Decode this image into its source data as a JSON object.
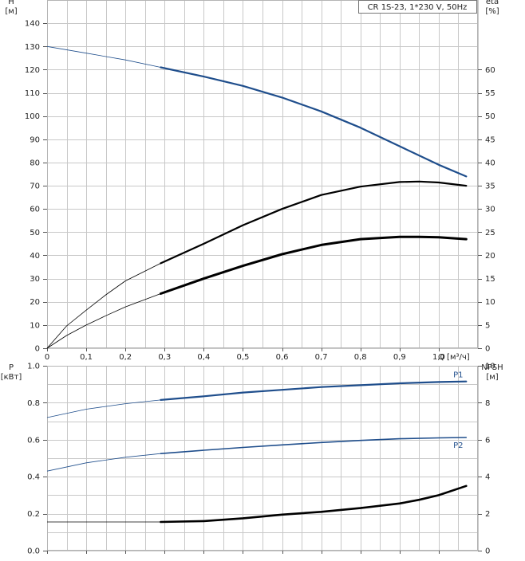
{
  "chart_data": [
    {
      "type": "line",
      "title_box": "CR 1S-23, 1*230 V, 50Hz",
      "xlabel": "Q [м³/ч]",
      "x_ticks": [
        "0",
        "0,1",
        "0,2",
        "0,3",
        "0,4",
        "0,5",
        "0,6",
        "0,7",
        "0,8",
        "0,9",
        "1,0"
      ],
      "xlim": [
        0,
        1.1
      ],
      "left_axis": {
        "label_lines": [
          "H",
          "[м]"
        ],
        "ylim": [
          0,
          150
        ],
        "ticks": [
          "0",
          "10",
          "20",
          "30",
          "40",
          "50",
          "60",
          "70",
          "80",
          "90",
          "100",
          "110",
          "120",
          "130",
          "140"
        ]
      },
      "right_axis": {
        "label_lines": [
          "eta",
          "[%]"
        ],
        "ylim": [
          0,
          75
        ],
        "ticks": [
          "0",
          "5",
          "10",
          "15",
          "20",
          "25",
          "30",
          "35",
          "40",
          "45",
          "50",
          "55",
          "60"
        ]
      },
      "grid": true,
      "series": [
        {
          "color": "#1f4e8c",
          "axis": "left",
          "bold_from": 0.29,
          "x": [
            0,
            0.1,
            0.2,
            0.29,
            0.4,
            0.5,
            0.6,
            0.7,
            0.8,
            0.9,
            1.0,
            1.07
          ],
          "values": [
            130,
            127.1,
            124.2,
            121,
            117,
            113,
            108,
            102,
            95,
            87,
            79,
            74
          ]
        },
        {
          "color": "#000000",
          "axis": "right",
          "bold_from": 0.29,
          "x": [
            0,
            0.05,
            0.1,
            0.15,
            0.2,
            0.29,
            0.4,
            0.5,
            0.6,
            0.7,
            0.8,
            0.9,
            0.95,
            1.0,
            1.07
          ],
          "values": [
            0,
            4.8,
            8.2,
            11.5,
            14.5,
            18.3,
            22.5,
            26.5,
            30,
            33,
            34.8,
            35.8,
            35.9,
            35.7,
            35
          ]
        },
        {
          "color": "#000000",
          "axis": "left",
          "bold_from": 0.29,
          "bold_width": 3,
          "x": [
            0,
            0.05,
            0.1,
            0.15,
            0.2,
            0.29,
            0.4,
            0.5,
            0.6,
            0.7,
            0.8,
            0.9,
            0.95,
            1.0,
            1.07
          ],
          "values": [
            0,
            5.5,
            10,
            14,
            17.8,
            23.5,
            30,
            35.5,
            40.5,
            44.5,
            47,
            48,
            48,
            47.8,
            47
          ]
        }
      ]
    },
    {
      "type": "line",
      "x_ticks": [
        "0",
        "0,1",
        "0,2",
        "0,3",
        "0,4",
        "0,5",
        "0,6",
        "0,7",
        "0,8",
        "0,9",
        "1,0"
      ],
      "xlim": [
        0,
        1.1
      ],
      "left_axis": {
        "label_lines": [
          "P",
          "[кВт]"
        ],
        "ylim": [
          0,
          1.0
        ],
        "ticks": [
          "0.0",
          "0.2",
          "0.4",
          "0.6",
          "0.8",
          "1.0"
        ]
      },
      "right_axis": {
        "label_lines": [
          "NPSH",
          "[м]"
        ],
        "ylim": [
          0,
          10
        ],
        "ticks": [
          "0",
          "2",
          "4",
          "6",
          "8",
          "10"
        ]
      },
      "grid": true,
      "series": [
        {
          "name": "P1",
          "color": "#1f4e8c",
          "axis": "left",
          "bold_from": 0.29,
          "x": [
            0,
            0.1,
            0.2,
            0.29,
            0.4,
            0.5,
            0.6,
            0.7,
            0.8,
            0.9,
            1.0,
            1.07
          ],
          "values": [
            0.72,
            0.765,
            0.795,
            0.815,
            0.835,
            0.855,
            0.87,
            0.885,
            0.895,
            0.905,
            0.912,
            0.915
          ]
        },
        {
          "name": "P2",
          "color": "#1f4e8c",
          "axis": "left",
          "bold_from": 0.29,
          "bold_width": 1.6,
          "x": [
            0,
            0.1,
            0.2,
            0.29,
            0.4,
            0.5,
            0.6,
            0.7,
            0.8,
            0.9,
            1.0,
            1.07
          ],
          "values": [
            0.43,
            0.475,
            0.505,
            0.525,
            0.543,
            0.558,
            0.572,
            0.585,
            0.596,
            0.605,
            0.61,
            0.612
          ]
        },
        {
          "color": "#000000",
          "axis": "right",
          "bold_from": 0.29,
          "bold_width": 2.6,
          "x": [
            0,
            0.1,
            0.2,
            0.29,
            0.4,
            0.5,
            0.6,
            0.7,
            0.8,
            0.9,
            0.95,
            1.0,
            1.07
          ],
          "values": [
            1.55,
            1.55,
            1.55,
            1.55,
            1.6,
            1.75,
            1.95,
            2.1,
            2.3,
            2.55,
            2.75,
            3.0,
            3.5
          ]
        }
      ]
    }
  ]
}
